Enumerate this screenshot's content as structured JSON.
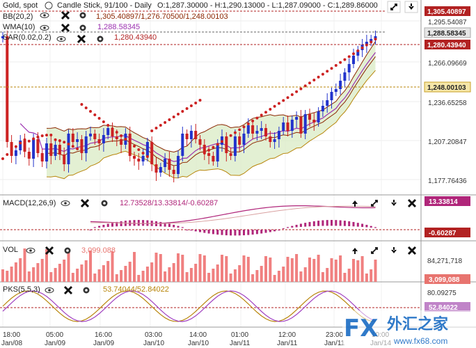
{
  "header": {
    "symbol": "Gold, spot",
    "chart_type": "Candle Stick, 91/100 - Daily",
    "ohlc": "O:1,287.30000 - H:1,290.13000 - L:1,287.09000 - C:1,289.86000"
  },
  "indicators": {
    "bb": {
      "label": "BB(20,2)",
      "values": "1,305.40897/1,276.70500/1,248.00103"
    },
    "wma": {
      "label": "WMA(10)",
      "value": "1,288.58345"
    },
    "sar": {
      "label": "SAR(0.02,0.2)",
      "value": "1,280.43940"
    }
  },
  "panels": {
    "macd": {
      "label": "MACD(12,26,9)",
      "values": "12.73528/13.33814/-0.60287",
      "badge_top": "13.33814",
      "badge_bottom": "-0.60287"
    },
    "vol": {
      "label": "VOL",
      "value": "3,099.088",
      "axis_top": "84,271,718",
      "badge": "3,099,088"
    },
    "pks": {
      "label": "PKS(5,5,3)",
      "values": "53.74044/52.84022",
      "axis_top": "80.09275",
      "badge": "52.84022"
    }
  },
  "price_axis": {
    "labels": [
      "1,295.54087",
      "1,266.09669",
      "1,236.65258",
      "1,207.20847",
      "1,177.76436"
    ],
    "badges": {
      "bb_upper": "1,305.40897",
      "wma": "1,288.58345",
      "sar": "1,280.43940",
      "bb_lower": "1,248.00103"
    }
  },
  "time_axis": [
    {
      "time": "18:00",
      "date": "Jan/08"
    },
    {
      "time": "05:00",
      "date": "Jan/09"
    },
    {
      "time": "16:00",
      "date": "Jan/09"
    },
    {
      "time": "03:00",
      "date": "Jan/10"
    },
    {
      "time": "14:00",
      "date": "Jan/10"
    },
    {
      "time": "01:00",
      "date": "Jan/11"
    },
    {
      "time": "12:00",
      "date": "Jan/11"
    },
    {
      "time": "23:00",
      "date": "Jan/11"
    },
    {
      "time": "10:00",
      "date": "Jan/14"
    }
  ],
  "colors": {
    "up": "#2233cc",
    "down": "#cc2222",
    "bb": "#b8860b",
    "bb_fill": "#d9ebc4",
    "wma": "#9b30b0",
    "sar": "#cc2222",
    "badge_bb": "#b22222",
    "badge_wma": "#e6e6e6",
    "badge_sar": "#b22222",
    "badge_lower": "#f5e6a8",
    "macd_badge": "#b0267a",
    "vol_badge": "#e8746f",
    "pks_badge": "#c084c8"
  },
  "watermark": {
    "brand": "FX",
    "cn": "外汇之家",
    "url": "www.fx68.com"
  },
  "icons": [
    "eye-icon",
    "close-icon",
    "gear-icon",
    "expand-icon",
    "arrow-up-icon",
    "arrow-down-icon"
  ]
}
